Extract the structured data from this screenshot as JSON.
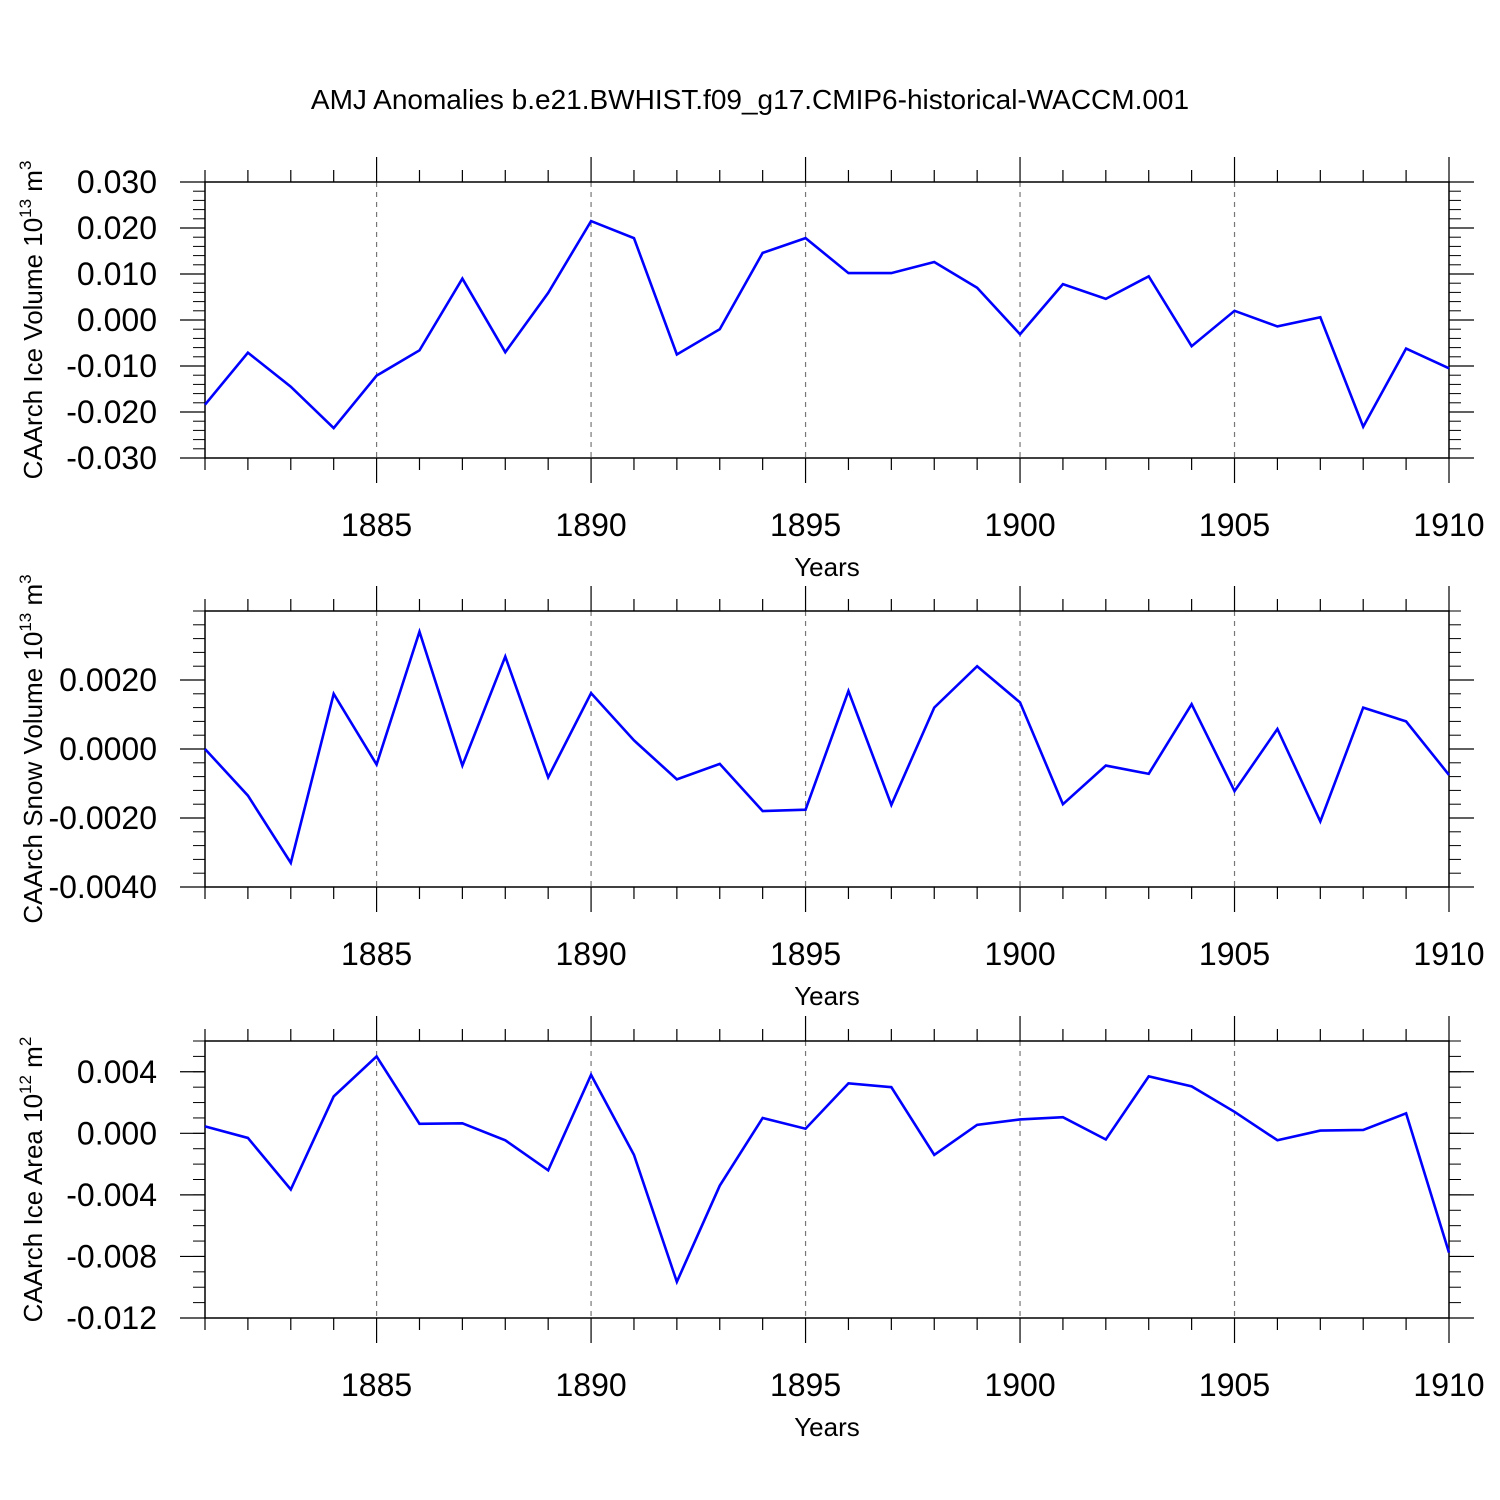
{
  "title": "AMJ Anomalies b.e21.BWHIST.f09_g17.CMIP6-historical-WACCM.001",
  "line_color": "#0000ff",
  "chart_data": [
    {
      "type": "line",
      "title": "",
      "xlabel": "Years",
      "ylabel": "CAArch Ice Volume 10",
      "ylabel_exp": "13",
      "ylabel_unit": " m",
      "ylabel_unit_exp": "3",
      "xlim": [
        1881,
        1910
      ],
      "ylim": [
        -0.03,
        0.03
      ],
      "x_ticks": [
        1885,
        1890,
        1895,
        1900,
        1905,
        1910
      ],
      "x_tick_labels": [
        "1885",
        "1890",
        "1895",
        "1900",
        "1905",
        "1910"
      ],
      "y_ticks": [
        -0.03,
        -0.02,
        -0.01,
        0.0,
        0.01,
        0.02,
        0.03
      ],
      "y_tick_labels": [
        "-0.030",
        "-0.020",
        "-0.010",
        "0.000",
        "0.010",
        "0.020",
        "0.030"
      ],
      "y_minor_step": 0.002,
      "grid": "dashed vertical at major x ticks",
      "x": [
        1881,
        1882,
        1883,
        1884,
        1885,
        1886,
        1887,
        1888,
        1889,
        1890,
        1891,
        1892,
        1893,
        1894,
        1895,
        1896,
        1897,
        1898,
        1899,
        1900,
        1901,
        1902,
        1903,
        1904,
        1905,
        1906,
        1907,
        1908,
        1909,
        1910
      ],
      "series": [
        {
          "name": "CAArch Ice Volume",
          "values": [
            -0.0184,
            -0.0071,
            -0.0145,
            -0.0235,
            -0.0121,
            -0.0066,
            0.009,
            -0.007,
            0.0059,
            0.0215,
            0.0178,
            -0.0075,
            -0.002,
            0.0146,
            0.0178,
            0.0102,
            0.0102,
            0.0126,
            0.007,
            -0.0031,
            0.0078,
            0.0046,
            0.0095,
            -0.0057,
            0.002,
            -0.0014,
            0.0006,
            -0.0232,
            -0.0062,
            -0.0105
          ]
        }
      ]
    },
    {
      "type": "line",
      "title": "",
      "xlabel": "Years",
      "ylabel": "CAArch Snow Volume 10",
      "ylabel_exp": "13",
      "ylabel_unit": " m",
      "ylabel_unit_exp": "3",
      "xlim": [
        1881,
        1910
      ],
      "ylim": [
        -0.004,
        0.004
      ],
      "x_ticks": [
        1885,
        1890,
        1895,
        1900,
        1905,
        1910
      ],
      "x_tick_labels": [
        "1885",
        "1890",
        "1895",
        "1900",
        "1905",
        "1910"
      ],
      "y_ticks": [
        -0.004,
        -0.002,
        0.0,
        0.002
      ],
      "y_tick_labels": [
        "-0.0040",
        "-0.0020",
        "0.0000",
        "0.0020"
      ],
      "y_minor_step": 0.0004,
      "grid": "dashed vertical at major x ticks",
      "x": [
        1881,
        1882,
        1883,
        1884,
        1885,
        1886,
        1887,
        1888,
        1889,
        1890,
        1891,
        1892,
        1893,
        1894,
        1895,
        1896,
        1897,
        1898,
        1899,
        1900,
        1901,
        1902,
        1903,
        1904,
        1905,
        1906,
        1907,
        1908,
        1909,
        1910
      ],
      "series": [
        {
          "name": "CAArch Snow Volume",
          "values": [
            0.0,
            -0.00135,
            -0.0033,
            0.0016,
            -0.00045,
            0.0034,
            -0.00048,
            0.00268,
            -0.00082,
            0.00162,
            0.00025,
            -0.00088,
            -0.00043,
            -0.0018,
            -0.00176,
            0.00168,
            -0.00162,
            0.0012,
            0.0024,
            0.00135,
            -0.0016,
            -0.00048,
            -0.00072,
            0.0013,
            -0.00122,
            0.00058,
            -0.0021,
            0.0012,
            0.0008,
            -0.00075
          ]
        }
      ]
    },
    {
      "type": "line",
      "title": "",
      "xlabel": "Years",
      "ylabel": "CAArch Ice Area 10",
      "ylabel_exp": "12",
      "ylabel_unit": " m",
      "ylabel_unit_exp": "2",
      "xlim": [
        1881,
        1910
      ],
      "ylim": [
        -0.012,
        0.006
      ],
      "x_ticks": [
        1885,
        1890,
        1895,
        1900,
        1905,
        1910
      ],
      "x_tick_labels": [
        "1885",
        "1890",
        "1895",
        "1900",
        "1905",
        "1910"
      ],
      "y_ticks": [
        -0.012,
        -0.008,
        -0.004,
        0.0,
        0.004
      ],
      "y_tick_labels": [
        "-0.012",
        "-0.008",
        "-0.004",
        "0.000",
        "0.004"
      ],
      "y_minor_step": 0.001,
      "grid": "dashed vertical at major x ticks",
      "x": [
        1881,
        1882,
        1883,
        1884,
        1885,
        1886,
        1887,
        1888,
        1889,
        1890,
        1891,
        1892,
        1893,
        1894,
        1895,
        1896,
        1897,
        1898,
        1899,
        1900,
        1901,
        1902,
        1903,
        1904,
        1905,
        1906,
        1907,
        1908,
        1909,
        1910
      ],
      "series": [
        {
          "name": "CAArch Ice Area",
          "values": [
            0.00045,
            -0.0003,
            -0.00365,
            0.0024,
            0.005,
            0.00062,
            0.00065,
            -0.00045,
            -0.0024,
            0.0038,
            -0.0014,
            -0.00965,
            -0.0034,
            0.001,
            0.0003,
            0.00325,
            0.003,
            -0.0014,
            0.00055,
            0.0009,
            0.00105,
            -0.0004,
            0.0037,
            0.00305,
            0.0014,
            -0.00045,
            0.00018,
            0.00022,
            0.0013,
            -0.00775
          ]
        }
      ]
    }
  ]
}
